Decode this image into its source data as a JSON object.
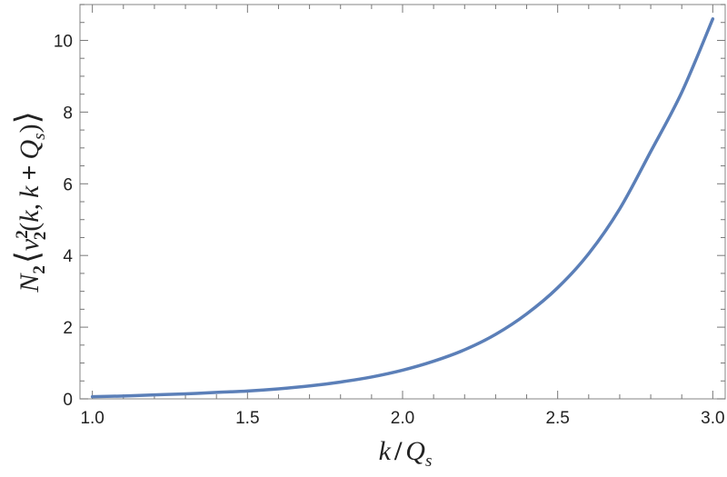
{
  "chart_data": {
    "type": "line",
    "title": "",
    "xlabel": "k / Q_s",
    "ylabel": "N_2 ⟨v_2^2(k, k + Q_s)⟩",
    "xlim": [
      0.96,
      3.04
    ],
    "ylim": [
      0,
      11
    ],
    "x_ticks": [
      "1.0",
      "1.5",
      "2.0",
      "2.5",
      "3.0"
    ],
    "x_tick_values": [
      1.0,
      1.5,
      2.0,
      2.5,
      3.0
    ],
    "y_ticks": [
      "0",
      "2",
      "4",
      "6",
      "8",
      "10"
    ],
    "y_tick_values": [
      0,
      2,
      4,
      6,
      8,
      10
    ],
    "grid": false,
    "series": [
      {
        "color": "#5b7fb8",
        "x": [
          1.0,
          1.1,
          1.2,
          1.3,
          1.4,
          1.5,
          1.6,
          1.7,
          1.8,
          1.9,
          2.0,
          2.1,
          2.2,
          2.3,
          2.4,
          2.5,
          2.6,
          2.7,
          2.8,
          2.9,
          3.0
        ],
        "y": [
          0.06,
          0.08,
          0.11,
          0.14,
          0.18,
          0.22,
          0.28,
          0.36,
          0.47,
          0.61,
          0.8,
          1.05,
          1.37,
          1.8,
          2.37,
          3.1,
          4.05,
          5.3,
          6.9,
          8.55,
          10.6
        ]
      }
    ]
  }
}
